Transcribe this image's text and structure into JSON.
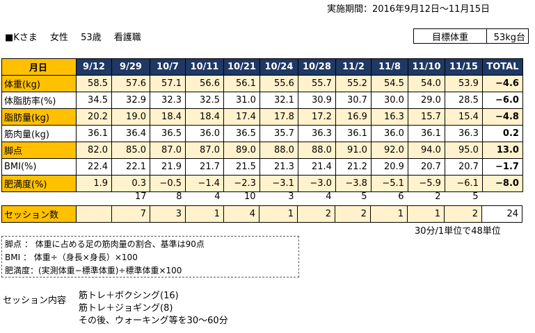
{
  "period": "実施期間：2016年9月12日～11月15日",
  "client": {
    "name": "■Kさま",
    "gender": "女性",
    "age": "53歳",
    "occupation": "看護職"
  },
  "goal": {
    "label": "目標体重",
    "value": "53kg台"
  },
  "colors": {
    "header_bg": "#1f3864",
    "label_bg": "#ffc000",
    "band_bg": "#fff2cc"
  },
  "table": {
    "header_label": "月日",
    "dates": [
      "9/12",
      "9/29",
      "10/7",
      "10/11",
      "10/21",
      "10/24",
      "10/28",
      "11/2",
      "11/8",
      "11/10",
      "11/15"
    ],
    "total_label": "TOTAL",
    "rows": [
      {
        "label": "体重(kg)",
        "values": [
          "58.5",
          "57.6",
          "57.1",
          "56.6",
          "56.1",
          "55.6",
          "55.7",
          "55.2",
          "54.5",
          "54.0",
          "53.9"
        ],
        "total": "−4.6"
      },
      {
        "label": "体脂肪率(%)",
        "values": [
          "34.5",
          "32.9",
          "32.3",
          "32.5",
          "31.0",
          "32.1",
          "30.9",
          "30.7",
          "30.0",
          "29.0",
          "28.5"
        ],
        "total": "−6.0"
      },
      {
        "label": "脂肪量(kg)",
        "values": [
          "20.2",
          "19.0",
          "18.4",
          "18.4",
          "17.4",
          "17.8",
          "17.2",
          "16.9",
          "16.3",
          "15.7",
          "15.4"
        ],
        "total": "−4.8"
      },
      {
        "label": "筋肉量(kg)",
        "values": [
          "36.1",
          "36.4",
          "36.5",
          "36.0",
          "36.5",
          "35.7",
          "36.3",
          "36.1",
          "36.0",
          "36.1",
          "36.3"
        ],
        "total": "0.2"
      },
      {
        "label": "脚点",
        "values": [
          "82.0",
          "85.0",
          "87.0",
          "87.0",
          "89.0",
          "88.0",
          "88.0",
          "91.0",
          "92.0",
          "94.0",
          "95.0"
        ],
        "total": "13.0"
      },
      {
        "label": "BMI(%)",
        "values": [
          "22.4",
          "22.1",
          "21.9",
          "21.7",
          "21.5",
          "21.3",
          "21.4",
          "21.2",
          "20.9",
          "20.7",
          "20.7"
        ],
        "total": "−1.7"
      },
      {
        "label": "肥満度(%)",
        "values": [
          "1.9",
          "0.3",
          "−0.5",
          "−1.4",
          "−2.3",
          "−3.1",
          "−3.0",
          "−3.8",
          "−5.1",
          "−5.9",
          "−6.1"
        ],
        "total": "−8.0"
      }
    ]
  },
  "days_between": [
    "",
    "17",
    "8",
    "4",
    "10",
    "3",
    "4",
    "5",
    "6",
    "2",
    "5"
  ],
  "sessions": {
    "label": "セッション数",
    "values": [
      "",
      "7",
      "3",
      "1",
      "4",
      "1",
      "2",
      "2",
      "1",
      "1",
      "2"
    ],
    "total": "24"
  },
  "unit_note": "30分/1単位で48単位",
  "notes": [
    "脚点 ： 体重に占める足の筋肉量の割合、基準は90点",
    "BMI ： 体重÷（身長×身長）×100",
    "肥満度：(実測体重−標準体重)÷標準体重×100"
  ],
  "session_content": {
    "label": "セッション内容",
    "items": [
      "筋トレ＋ボクシング(16)",
      "筋トレ＋ジョギング(8)",
      "その後、ウォーキング等を30〜60分"
    ]
  }
}
